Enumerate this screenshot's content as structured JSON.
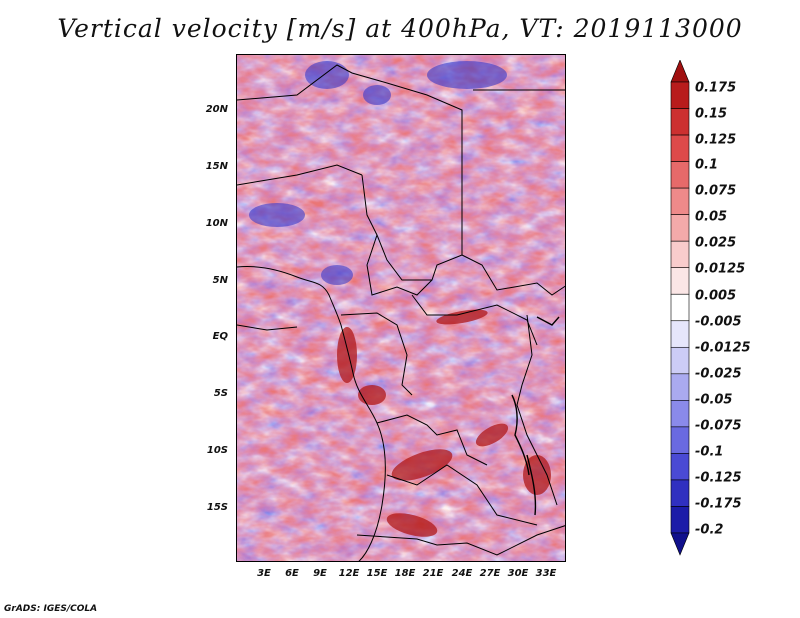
{
  "title": "Vertical velocity [m/s] at 400hPa, VT: 2019113000",
  "credit": "GrADS: IGES/COLA",
  "map": {
    "lat_ticks": [
      "20N",
      "15N",
      "10N",
      "5N",
      "EQ",
      "5S",
      "10S",
      "15S"
    ],
    "lon_ticks": [
      "3E",
      "6E",
      "9E",
      "12E",
      "15E",
      "18E",
      "21E",
      "24E",
      "27E",
      "30E",
      "33E"
    ]
  },
  "colorbar": {
    "labels": [
      "0.175",
      "0.15",
      "0.125",
      "0.1",
      "0.075",
      "0.05",
      "0.025",
      "0.0125",
      "0.005",
      "-0.005",
      "-0.0125",
      "-0.025",
      "-0.05",
      "-0.075",
      "-0.1",
      "-0.125",
      "-0.175",
      "-0.2"
    ],
    "colors": [
      "#a01010",
      "#b81c1c",
      "#cc3030",
      "#dd4a4a",
      "#e66a6a",
      "#ee8a8a",
      "#f4aaaa",
      "#f8cccc",
      "#fbe6e6",
      "#ffffff",
      "#e6e6fb",
      "#ccccf6",
      "#aaaaf0",
      "#8a8aea",
      "#6a6ae0",
      "#4a4ad4",
      "#3030c0",
      "#1c1ca8",
      "#10108c"
    ]
  }
}
